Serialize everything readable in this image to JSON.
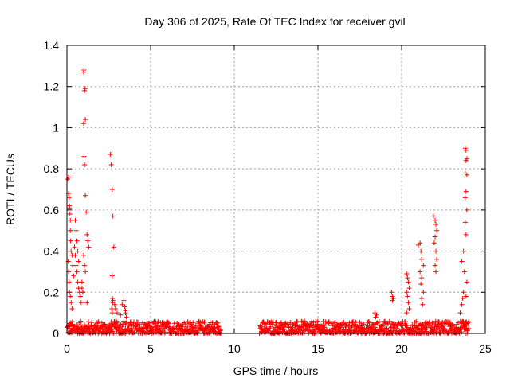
{
  "chart_data": {
    "type": "scatter",
    "title": "Day 306 of 2025, Rate Of TEC Index for receiver gvil",
    "xlabel": "GPS time / hours",
    "ylabel": "ROTI / TECUs",
    "xlim": [
      0,
      25
    ],
    "ylim": [
      0,
      1.4
    ],
    "xticks": [
      0,
      5,
      10,
      15,
      20,
      25
    ],
    "yticks": [
      0,
      0.2,
      0.4,
      0.6,
      0.8,
      1,
      1.2,
      1.4
    ],
    "xtick_labels": [
      "0",
      "5",
      "10",
      "15",
      "20",
      "25"
    ],
    "ytick_labels": [
      "0",
      "0.2",
      "0.4",
      "0.6",
      "0.8",
      "1",
      "1.2",
      "1.4"
    ],
    "grid": true,
    "marker": "+",
    "color": "#ff0000",
    "series": [
      {
        "x": [
          0.05,
          0.1,
          0.12,
          0.15,
          0.18,
          0.2,
          0.22,
          0.25,
          0.08,
          0.1,
          0.12,
          0.15,
          0.2,
          0.25,
          0.3,
          0.1,
          0.15,
          0.2,
          0.3,
          0.35,
          0.4,
          0.5,
          0.55,
          0.6,
          0.65,
          0.7,
          0.45,
          0.5,
          0.55,
          0.6,
          0.65,
          0.7,
          0.75,
          0.8,
          0.85,
          0.9,
          0.95,
          1.0,
          1.02,
          1.05,
          1.08,
          1.1,
          1.0,
          1.02,
          1.05,
          1.1,
          1.15,
          1.2,
          1.25,
          1.3,
          1.0,
          1.05,
          1.1,
          0.9,
          0.95,
          1.2,
          2.6,
          2.65,
          2.7,
          2.75,
          2.8,
          2.7,
          2.72,
          2.74,
          2.68,
          2.7,
          2.75,
          2.85,
          2.9,
          3.0,
          3.2,
          3.3,
          3.4,
          3.45,
          3.5,
          3.55,
          3.5,
          3.4,
          3.6,
          19.4,
          19.45,
          19.5,
          19.45,
          20.3,
          20.35,
          20.4,
          20.45,
          20.3,
          20.35,
          20.4,
          20.45,
          20.3,
          21.0,
          21.1,
          21.15,
          21.2,
          21.3,
          21.1,
          21.2,
          21.15,
          21.3,
          21.2,
          21.25,
          21.9,
          22.0,
          22.05,
          22.1,
          22.0,
          21.95,
          22.05,
          22.1,
          22.0,
          22.05,
          23.5,
          23.6,
          23.65,
          23.7,
          23.8,
          23.85,
          23.9,
          23.85,
          23.8,
          23.9,
          23.85,
          23.8,
          23.9,
          23.8,
          23.85,
          23.7,
          23.6,
          23.75,
          23.9,
          23.85,
          18.4,
          18.5,
          18.45
        ],
        "y": [
          0.75,
          0.76,
          0.66,
          0.62,
          0.58,
          0.55,
          0.45,
          0.4,
          0.35,
          0.3,
          0.25,
          0.2,
          0.18,
          0.15,
          0.12,
          0.68,
          0.61,
          0.5,
          0.38,
          0.33,
          0.28,
          0.55,
          0.5,
          0.45,
          0.4,
          0.35,
          0.42,
          0.38,
          0.33,
          0.3,
          0.25,
          0.22,
          0.2,
          0.18,
          0.15,
          0.22,
          0.2,
          1.27,
          1.28,
          1.18,
          1.19,
          1.04,
          1.02,
          0.86,
          0.82,
          0.67,
          0.59,
          0.48,
          0.45,
          0.42,
          0.38,
          0.33,
          0.3,
          0.25,
          0.2,
          0.15,
          0.87,
          0.82,
          0.7,
          0.57,
          0.42,
          0.28,
          0.17,
          0.15,
          0.12,
          0.1,
          0.16,
          0.14,
          0.12,
          0.1,
          0.09,
          0.14,
          0.16,
          0.13,
          0.11,
          0.08,
          0.1,
          0.06,
          0.05,
          0.2,
          0.18,
          0.17,
          0.16,
          0.29,
          0.27,
          0.25,
          0.22,
          0.2,
          0.18,
          0.15,
          0.12,
          0.1,
          0.43,
          0.44,
          0.4,
          0.36,
          0.33,
          0.3,
          0.27,
          0.24,
          0.2,
          0.17,
          0.14,
          0.57,
          0.55,
          0.53,
          0.5,
          0.47,
          0.44,
          0.4,
          0.36,
          0.33,
          0.3,
          0.1,
          0.14,
          0.17,
          0.2,
          0.9,
          0.89,
          0.85,
          0.84,
          0.78,
          0.77,
          0.69,
          0.66,
          0.6,
          0.54,
          0.48,
          0.4,
          0.35,
          0.3,
          0.25,
          0.18,
          0.1,
          0.09,
          0.08
        ]
      }
    ],
    "dense_band": {
      "segments": [
        [
          0.0,
          9.2
        ],
        [
          11.5,
          24.0
        ]
      ],
      "y_min": 0.0,
      "y_max": 0.06
    }
  }
}
